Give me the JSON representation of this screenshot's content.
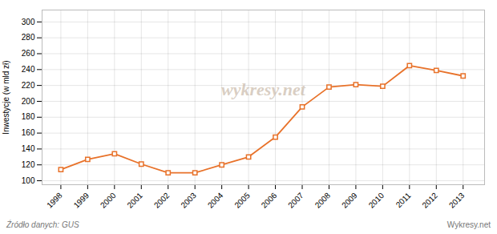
{
  "chart_data": {
    "type": "line",
    "x": [
      1998,
      1999,
      2000,
      2001,
      2002,
      2003,
      2004,
      2005,
      2006,
      2007,
      2008,
      2009,
      2010,
      2011,
      2012,
      2013
    ],
    "values": [
      114,
      127,
      134,
      121,
      110,
      110,
      120,
      130,
      155,
      193,
      218,
      221,
      219,
      245,
      239,
      232
    ],
    "color": "#e8722a",
    "marker": "square",
    "ylabel": "Inwestycje (w mld zł)",
    "xlim": [
      1997.3,
      2013.8
    ],
    "xticks": [
      1998,
      1999,
      2000,
      2001,
      2002,
      2003,
      2004,
      2005,
      2006,
      2007,
      2008,
      2009,
      2010,
      2011,
      2012,
      2013
    ],
    "ylim": [
      95,
      315
    ],
    "yticks": [
      100,
      120,
      140,
      160,
      180,
      200,
      220,
      240,
      260,
      280,
      300
    ],
    "grid": true,
    "watermark": "wykresy.net",
    "source": "Źródło danych:  GUS",
    "footer": "Wykresy.net"
  }
}
